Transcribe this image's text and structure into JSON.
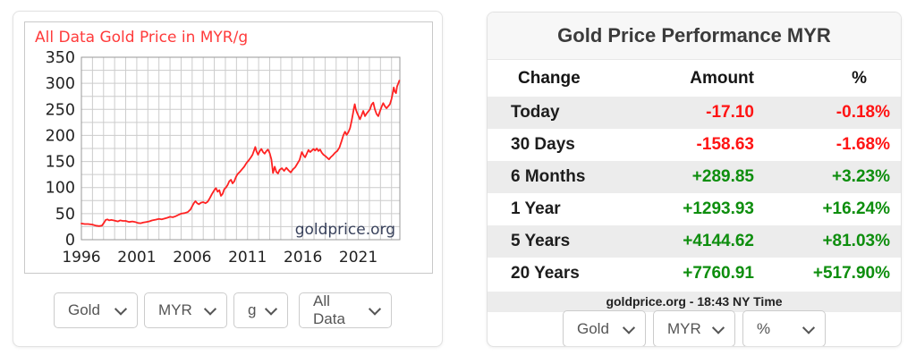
{
  "colors": {
    "line": "#ff2222",
    "chart_title": "#ff3b3b",
    "watermark": "#39425c",
    "grid": "#cccccc",
    "plot_border": "#999999",
    "axis_text": "#222222",
    "up": "#0e8e0e",
    "down": "#ff1414",
    "row_alt": "#ececec"
  },
  "chart_panel": {
    "title": "All Data Gold Price in MYR/g",
    "selects": [
      {
        "label": "Gold"
      },
      {
        "label": "MYR"
      },
      {
        "label": "g"
      },
      {
        "label": "All Data"
      }
    ]
  },
  "chart_data": {
    "type": "line",
    "title": "All Data Gold Price in MYR/g",
    "xlabel": "",
    "ylabel": "",
    "x_range": [
      1996,
      2024.75
    ],
    "y_range": [
      0,
      350
    ],
    "x_ticks": [
      1996,
      2001,
      2006,
      2011,
      2016,
      2021
    ],
    "y_ticks": [
      0,
      50,
      100,
      150,
      200,
      250,
      300,
      350
    ],
    "x_grid_step": 1,
    "y_grid_step": 25,
    "grid": true,
    "legend": false,
    "watermark": "goldprice.org",
    "series": [
      {
        "name": "Gold Price in MYR/g",
        "points": [
          [
            1996.0,
            31
          ],
          [
            1996.3,
            30
          ],
          [
            1996.6,
            30
          ],
          [
            1997.0,
            29
          ],
          [
            1997.3,
            27
          ],
          [
            1997.6,
            26
          ],
          [
            1997.85,
            27
          ],
          [
            1998.05,
            33
          ],
          [
            1998.2,
            38
          ],
          [
            1998.35,
            39
          ],
          [
            1998.5,
            37
          ],
          [
            1998.7,
            38
          ],
          [
            1998.9,
            37
          ],
          [
            1999.1,
            36
          ],
          [
            1999.3,
            35
          ],
          [
            1999.5,
            37
          ],
          [
            1999.75,
            36
          ],
          [
            2000.0,
            36
          ],
          [
            2000.3,
            34
          ],
          [
            2000.6,
            35
          ],
          [
            2000.85,
            34
          ],
          [
            2001.1,
            32
          ],
          [
            2001.35,
            31.5
          ],
          [
            2001.6,
            33
          ],
          [
            2001.85,
            34
          ],
          [
            2002.1,
            35
          ],
          [
            2002.4,
            37
          ],
          [
            2002.7,
            38.5
          ],
          [
            2003.0,
            40
          ],
          [
            2003.25,
            39
          ],
          [
            2003.5,
            40.5
          ],
          [
            2003.75,
            42
          ],
          [
            2004.0,
            44
          ],
          [
            2004.25,
            43
          ],
          [
            2004.5,
            45
          ],
          [
            2004.8,
            48
          ],
          [
            2005.0,
            50
          ],
          [
            2005.3,
            51
          ],
          [
            2005.6,
            53
          ],
          [
            2005.85,
            58
          ],
          [
            2006.0,
            64
          ],
          [
            2006.15,
            70
          ],
          [
            2006.3,
            74
          ],
          [
            2006.45,
            70
          ],
          [
            2006.6,
            68
          ],
          [
            2006.8,
            71
          ],
          [
            2007.0,
            72
          ],
          [
            2007.2,
            70
          ],
          [
            2007.4,
            73
          ],
          [
            2007.6,
            80
          ],
          [
            2007.8,
            88
          ],
          [
            2008.0,
            95
          ],
          [
            2008.15,
            99
          ],
          [
            2008.3,
            92
          ],
          [
            2008.45,
            95
          ],
          [
            2008.6,
            84
          ],
          [
            2008.75,
            88
          ],
          [
            2008.9,
            97
          ],
          [
            2009.05,
            100
          ],
          [
            2009.2,
            105
          ],
          [
            2009.35,
            112
          ],
          [
            2009.5,
            115
          ],
          [
            2009.65,
            108
          ],
          [
            2009.8,
            112
          ],
          [
            2009.95,
            120
          ],
          [
            2010.1,
            126
          ],
          [
            2010.3,
            130
          ],
          [
            2010.5,
            135
          ],
          [
            2010.7,
            140
          ],
          [
            2010.9,
            147
          ],
          [
            2011.1,
            152
          ],
          [
            2011.3,
            158
          ],
          [
            2011.45,
            163
          ],
          [
            2011.6,
            172
          ],
          [
            2011.7,
            178
          ],
          [
            2011.8,
            170
          ],
          [
            2011.95,
            163
          ],
          [
            2012.1,
            170
          ],
          [
            2012.25,
            174
          ],
          [
            2012.4,
            168
          ],
          [
            2012.55,
            165
          ],
          [
            2012.7,
            170
          ],
          [
            2012.85,
            173
          ],
          [
            2013.0,
            166
          ],
          [
            2013.15,
            154
          ],
          [
            2013.3,
            128
          ],
          [
            2013.45,
            140
          ],
          [
            2013.6,
            130
          ],
          [
            2013.75,
            127
          ],
          [
            2013.9,
            134
          ],
          [
            2014.1,
            137
          ],
          [
            2014.3,
            132
          ],
          [
            2014.5,
            138
          ],
          [
            2014.7,
            133
          ],
          [
            2014.9,
            129
          ],
          [
            2015.1,
            135
          ],
          [
            2015.3,
            139
          ],
          [
            2015.5,
            146
          ],
          [
            2015.7,
            153
          ],
          [
            2015.9,
            168
          ],
          [
            2016.05,
            162
          ],
          [
            2016.2,
            158
          ],
          [
            2016.35,
            165
          ],
          [
            2016.5,
            172
          ],
          [
            2016.65,
            168
          ],
          [
            2016.8,
            171
          ],
          [
            2016.95,
            174
          ],
          [
            2017.1,
            171
          ],
          [
            2017.25,
            175
          ],
          [
            2017.4,
            170
          ],
          [
            2017.55,
            173
          ],
          [
            2017.7,
            167
          ],
          [
            2017.85,
            163
          ],
          [
            2018.0,
            161
          ],
          [
            2018.2,
            157
          ],
          [
            2018.35,
            154
          ],
          [
            2018.5,
            158
          ],
          [
            2018.7,
            162
          ],
          [
            2018.9,
            167
          ],
          [
            2019.1,
            170
          ],
          [
            2019.3,
            177
          ],
          [
            2019.5,
            190
          ],
          [
            2019.65,
            200
          ],
          [
            2019.8,
            207
          ],
          [
            2019.95,
            201
          ],
          [
            2020.1,
            206
          ],
          [
            2020.25,
            214
          ],
          [
            2020.4,
            228
          ],
          [
            2020.5,
            240
          ],
          [
            2020.6,
            252
          ],
          [
            2020.68,
            260
          ],
          [
            2020.78,
            250
          ],
          [
            2020.9,
            243
          ],
          [
            2021.0,
            238
          ],
          [
            2021.15,
            231
          ],
          [
            2021.3,
            239
          ],
          [
            2021.45,
            247
          ],
          [
            2021.6,
            237
          ],
          [
            2021.75,
            242
          ],
          [
            2021.9,
            246
          ],
          [
            2022.05,
            250
          ],
          [
            2022.2,
            259
          ],
          [
            2022.35,
            263
          ],
          [
            2022.5,
            250
          ],
          [
            2022.65,
            241
          ],
          [
            2022.8,
            237
          ],
          [
            2022.95,
            246
          ],
          [
            2023.1,
            255
          ],
          [
            2023.25,
            262
          ],
          [
            2023.4,
            256
          ],
          [
            2023.55,
            252
          ],
          [
            2023.7,
            256
          ],
          [
            2023.85,
            260
          ],
          [
            2024.0,
            270
          ],
          [
            2024.1,
            281
          ],
          [
            2024.2,
            292
          ],
          [
            2024.3,
            284
          ],
          [
            2024.4,
            281
          ],
          [
            2024.5,
            294
          ],
          [
            2024.6,
            299
          ],
          [
            2024.7,
            305
          ]
        ]
      }
    ]
  },
  "performance": {
    "title": "Gold Price Performance MYR",
    "columns": [
      "Change",
      "Amount",
      "%"
    ],
    "rows": [
      {
        "label": "Today",
        "amount": "-17.10",
        "pct": "-0.18%"
      },
      {
        "label": "30 Days",
        "amount": "-158.63",
        "pct": "-1.68%"
      },
      {
        "label": "6 Months",
        "amount": "+289.85",
        "pct": "+3.23%"
      },
      {
        "label": "1 Year",
        "amount": "+1293.93",
        "pct": "+16.24%"
      },
      {
        "label": "5 Years",
        "amount": "+4144.62",
        "pct": "+81.03%"
      },
      {
        "label": "20 Years",
        "amount": "+7760.91",
        "pct": "+517.90%"
      }
    ],
    "footer": "goldprice.org - 18:43 NY Time",
    "selects": [
      {
        "label": "Gold"
      },
      {
        "label": "MYR"
      },
      {
        "label": "%"
      }
    ]
  }
}
